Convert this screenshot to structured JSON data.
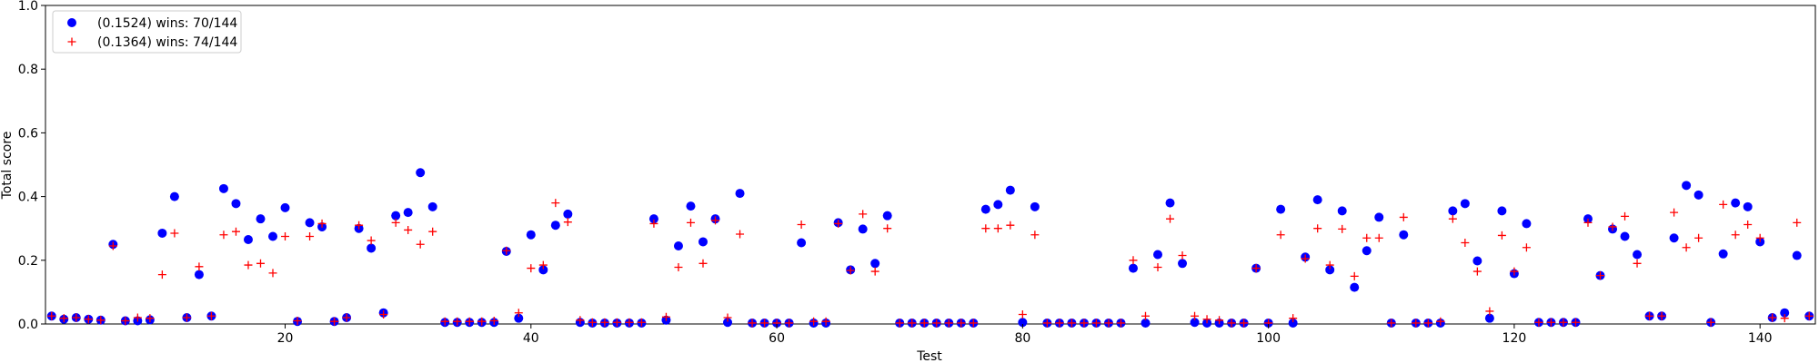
{
  "chart_data": {
    "type": "scatter",
    "title": "",
    "xlabel": "Test",
    "ylabel": "Total score",
    "xlim": [
      0.5,
      144.5
    ],
    "ylim": [
      0.0,
      1.0
    ],
    "xticks": [
      20,
      40,
      60,
      80,
      100,
      120,
      140
    ],
    "xtick_labels": [
      "20",
      "40",
      "60",
      "80",
      "100",
      "120",
      "140"
    ],
    "yticks": [
      0.0,
      0.2,
      0.4,
      0.6,
      0.8,
      1.0
    ],
    "ytick_labels": [
      "0.0",
      "0.2",
      "0.4",
      "0.6",
      "0.8",
      "1.0"
    ],
    "grid": false,
    "legend_position": "top-left",
    "series": [
      {
        "name": "(0.1524) wins: 70/144",
        "marker": "circle",
        "color": "#0000ff",
        "x": [
          1,
          2,
          3,
          4,
          5,
          6,
          7,
          8,
          9,
          10,
          11,
          12,
          13,
          14,
          15,
          16,
          17,
          18,
          19,
          20,
          21,
          22,
          23,
          24,
          25,
          26,
          27,
          28,
          29,
          30,
          31,
          32,
          33,
          34,
          35,
          36,
          37,
          38,
          39,
          40,
          41,
          42,
          43,
          44,
          45,
          46,
          47,
          48,
          49,
          50,
          51,
          52,
          53,
          54,
          55,
          56,
          57,
          58,
          59,
          60,
          61,
          62,
          63,
          64,
          65,
          66,
          67,
          68,
          69,
          70,
          71,
          72,
          73,
          74,
          75,
          76,
          77,
          78,
          79,
          80,
          81,
          82,
          83,
          84,
          85,
          86,
          87,
          88,
          89,
          90,
          91,
          92,
          93,
          94,
          95,
          96,
          97,
          98,
          99,
          100,
          101,
          102,
          103,
          104,
          105,
          106,
          107,
          108,
          109,
          110,
          111,
          112,
          113,
          114,
          115,
          116,
          117,
          118,
          119,
          120,
          121,
          122,
          123,
          124,
          125,
          126,
          127,
          128,
          129,
          130,
          131,
          132,
          133,
          134,
          135,
          136,
          137,
          138,
          139,
          140,
          141,
          142,
          143,
          144
        ],
        "y": [
          0.025,
          0.015,
          0.02,
          0.015,
          0.012,
          0.25,
          0.01,
          0.01,
          0.013,
          0.285,
          0.4,
          0.02,
          0.155,
          0.025,
          0.425,
          0.378,
          0.265,
          0.33,
          0.275,
          0.365,
          0.008,
          0.318,
          0.305,
          0.008,
          0.02,
          0.3,
          0.238,
          0.035,
          0.34,
          0.35,
          0.475,
          0.368,
          0.005,
          0.005,
          0.005,
          0.005,
          0.005,
          0.228,
          0.018,
          0.28,
          0.17,
          0.31,
          0.345,
          0.005,
          0.003,
          0.003,
          0.003,
          0.003,
          0.003,
          0.33,
          0.012,
          0.245,
          0.37,
          0.258,
          0.33,
          0.005,
          0.41,
          0.003,
          0.003,
          0.003,
          0.003,
          0.255,
          0.003,
          0.003,
          0.318,
          0.17,
          0.298,
          0.19,
          0.34,
          0.003,
          0.003,
          0.003,
          0.003,
          0.003,
          0.003,
          0.003,
          0.36,
          0.375,
          0.42,
          0.005,
          0.368,
          0.003,
          0.003,
          0.003,
          0.003,
          0.003,
          0.003,
          0.003,
          0.175,
          0.003,
          0.218,
          0.38,
          0.19,
          0.005,
          0.003,
          0.003,
          0.003,
          0.003,
          0.175,
          0.003,
          0.36,
          0.003,
          0.21,
          0.39,
          0.17,
          0.355,
          0.115,
          0.23,
          0.335,
          0.003,
          0.28,
          0.003,
          0.003,
          0.003,
          0.355,
          0.378,
          0.198,
          0.018,
          0.355,
          0.158,
          0.315,
          0.005,
          0.005,
          0.005,
          0.005,
          0.33,
          0.152,
          0.298,
          0.275,
          0.218,
          0.025,
          0.025,
          0.27,
          0.435,
          0.405,
          0.005,
          0.22,
          0.38,
          0.368,
          0.258,
          0.02,
          0.035,
          0.215,
          0.025
        ]
      },
      {
        "name": "(0.1364) wins: 74/144",
        "marker": "plus",
        "color": "#ff0000",
        "x": [
          1,
          2,
          3,
          4,
          5,
          6,
          7,
          8,
          9,
          10,
          11,
          12,
          13,
          14,
          15,
          16,
          17,
          18,
          19,
          20,
          21,
          22,
          23,
          24,
          25,
          26,
          27,
          28,
          29,
          30,
          31,
          32,
          33,
          34,
          35,
          36,
          37,
          38,
          39,
          40,
          41,
          42,
          43,
          44,
          45,
          46,
          47,
          48,
          49,
          50,
          51,
          52,
          53,
          54,
          55,
          56,
          57,
          58,
          59,
          60,
          61,
          62,
          63,
          64,
          65,
          66,
          67,
          68,
          69,
          70,
          71,
          72,
          73,
          74,
          75,
          76,
          77,
          78,
          79,
          80,
          81,
          82,
          83,
          84,
          85,
          86,
          87,
          88,
          89,
          90,
          91,
          92,
          93,
          94,
          95,
          96,
          97,
          98,
          99,
          100,
          101,
          102,
          103,
          104,
          105,
          106,
          107,
          108,
          109,
          110,
          111,
          112,
          113,
          114,
          115,
          116,
          117,
          118,
          119,
          120,
          121,
          122,
          123,
          124,
          125,
          126,
          127,
          128,
          129,
          130,
          131,
          132,
          133,
          134,
          135,
          136,
          137,
          138,
          139,
          140,
          141,
          142,
          143,
          144
        ],
        "y": [
          0.025,
          0.018,
          0.02,
          0.015,
          0.012,
          0.245,
          0.01,
          0.02,
          0.018,
          0.155,
          0.285,
          0.02,
          0.18,
          0.025,
          0.28,
          0.29,
          0.185,
          0.19,
          0.16,
          0.275,
          0.01,
          0.275,
          0.315,
          0.008,
          0.02,
          0.31,
          0.262,
          0.03,
          0.318,
          0.295,
          0.25,
          0.29,
          0.008,
          0.008,
          0.008,
          0.008,
          0.01,
          0.23,
          0.035,
          0.175,
          0.185,
          0.38,
          0.32,
          0.012,
          0.005,
          0.005,
          0.005,
          0.005,
          0.005,
          0.315,
          0.022,
          0.178,
          0.318,
          0.19,
          0.325,
          0.02,
          0.282,
          0.003,
          0.003,
          0.003,
          0.003,
          0.312,
          0.008,
          0.008,
          0.315,
          0.168,
          0.345,
          0.165,
          0.3,
          0.003,
          0.003,
          0.003,
          0.003,
          0.003,
          0.003,
          0.003,
          0.3,
          0.3,
          0.31,
          0.03,
          0.28,
          0.003,
          0.003,
          0.003,
          0.003,
          0.003,
          0.003,
          0.003,
          0.2,
          0.025,
          0.178,
          0.33,
          0.215,
          0.025,
          0.015,
          0.012,
          0.003,
          0.003,
          0.175,
          0.003,
          0.28,
          0.018,
          0.205,
          0.3,
          0.185,
          0.298,
          0.15,
          0.27,
          0.27,
          0.003,
          0.335,
          0.003,
          0.003,
          0.008,
          0.33,
          0.255,
          0.165,
          0.04,
          0.278,
          0.165,
          0.24,
          0.005,
          0.005,
          0.005,
          0.005,
          0.318,
          0.152,
          0.305,
          0.338,
          0.19,
          0.025,
          0.025,
          0.35,
          0.24,
          0.27,
          0.005,
          0.375,
          0.28,
          0.312,
          0.27,
          0.02,
          0.018,
          0.318,
          0.025
        ]
      }
    ]
  }
}
